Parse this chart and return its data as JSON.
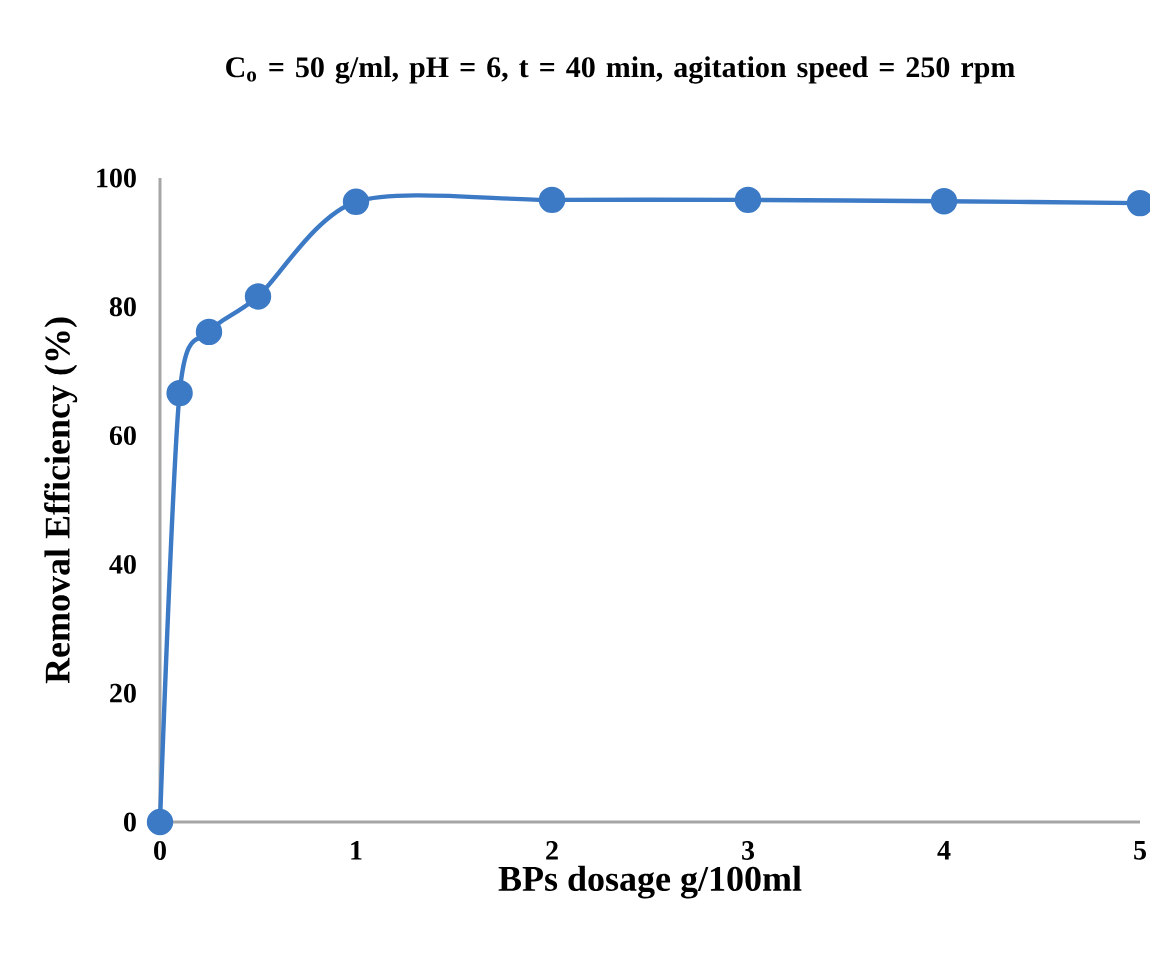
{
  "chart_data": {
    "type": "line",
    "title": "C$_{o}$ = 50 g/ml, pH = 6, t = 40 min, agitation speed = 250 rpm",
    "xlabel": "BPs dosage g/100ml",
    "ylabel": "Removal Efficiency (%)",
    "x": [
      0,
      0.1,
      0.25,
      0.5,
      1,
      2,
      3,
      4,
      5
    ],
    "series": [
      {
        "color": "#3c7ac6",
        "values": [
          0,
          66.6,
          76.1,
          81.6,
          96.3,
          96.6,
          96.6,
          96.4,
          96.1
        ]
      }
    ],
    "xlim": [
      0,
      5
    ],
    "ylim": [
      0,
      100
    ],
    "xticks": [
      0,
      1,
      2,
      3,
      4,
      5
    ],
    "yticks": [
      0,
      20,
      40,
      60,
      80,
      100
    ],
    "marker": "circle",
    "grid": false
  }
}
